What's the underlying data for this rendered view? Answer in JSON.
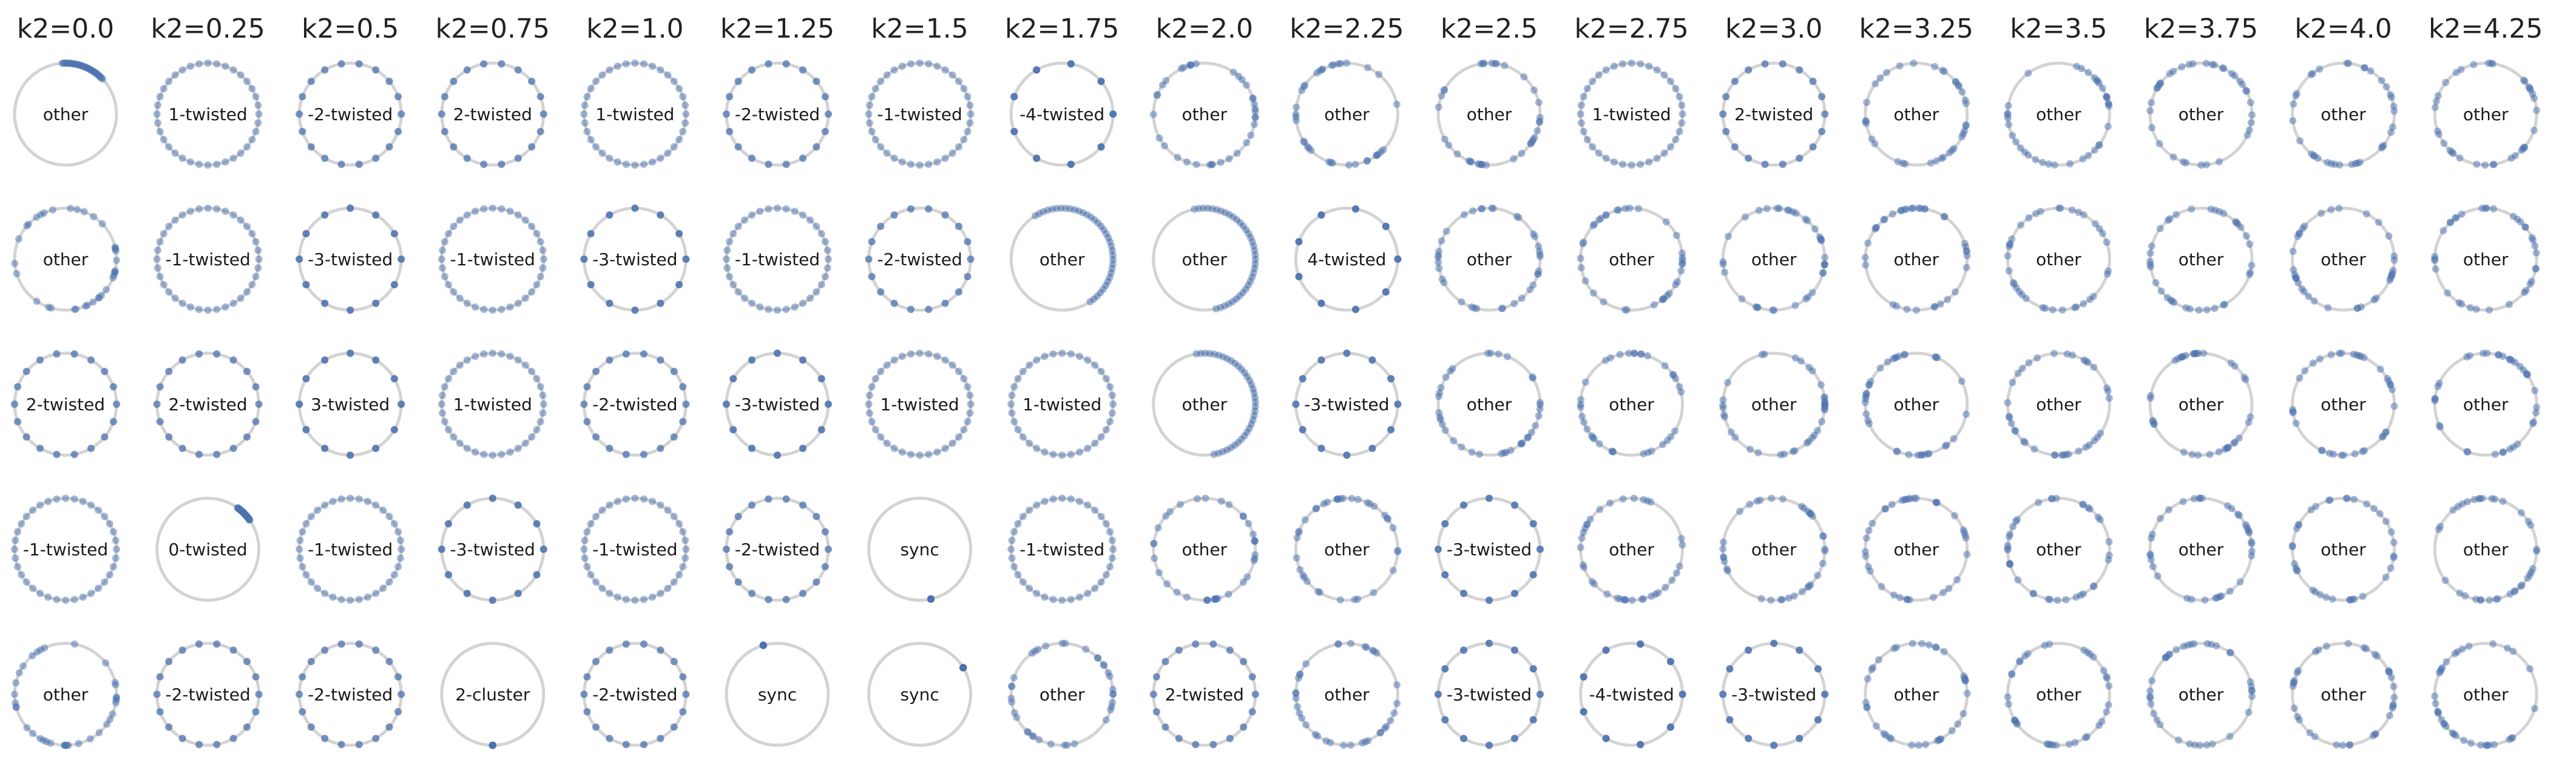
{
  "chart_data": {
    "type": "scatter",
    "title": "",
    "columns": [
      "k2=0.0",
      "k2=0.25",
      "k2=0.5",
      "k2=0.75",
      "k2=1.0",
      "k2=1.25",
      "k2=1.5",
      "k2=1.75",
      "k2=2.0",
      "k2=2.25",
      "k2=2.5",
      "k2=2.75",
      "k2=3.0",
      "k2=3.25",
      "k2=3.5",
      "k2=3.75",
      "k2=4.0",
      "k2=4.25"
    ],
    "rows": 5,
    "labels": [
      [
        "other",
        "1-twisted",
        "-2-twisted",
        "2-twisted",
        "1-twisted",
        "-2-twisted",
        "-1-twisted",
        "-4-twisted",
        "other",
        "other",
        "other",
        "1-twisted",
        "2-twisted",
        "other",
        "other",
        "other",
        "other",
        "other"
      ],
      [
        "other",
        "-1-twisted",
        "-3-twisted",
        "-1-twisted",
        "-3-twisted",
        "-1-twisted",
        "-2-twisted",
        "other",
        "other",
        "4-twisted",
        "other",
        "other",
        "other",
        "other",
        "other",
        "other",
        "other",
        "other"
      ],
      [
        "2-twisted",
        "2-twisted",
        "3-twisted",
        "1-twisted",
        "-2-twisted",
        "-3-twisted",
        "1-twisted",
        "1-twisted",
        "other",
        "-3-twisted",
        "other",
        "other",
        "other",
        "other",
        "other",
        "other",
        "other",
        "other"
      ],
      [
        "-1-twisted",
        "0-twisted",
        "-1-twisted",
        "-3-twisted",
        "-1-twisted",
        "-2-twisted",
        "sync",
        "-1-twisted",
        "other",
        "other",
        "-3-twisted",
        "other",
        "other",
        "other",
        "other",
        "other",
        "other",
        "other"
      ],
      [
        "other",
        "-2-twisted",
        "-2-twisted",
        "2-cluster",
        "-2-twisted",
        "sync",
        "sync",
        "other",
        "2-twisted",
        "other",
        "-3-twisted",
        "-4-twisted",
        "-3-twisted",
        "other",
        "other",
        "other",
        "other",
        "other"
      ]
    ],
    "colors": {
      "oscillator": "#4c72b0",
      "ring": "#d3d3d3",
      "text": "#222222"
    }
  }
}
